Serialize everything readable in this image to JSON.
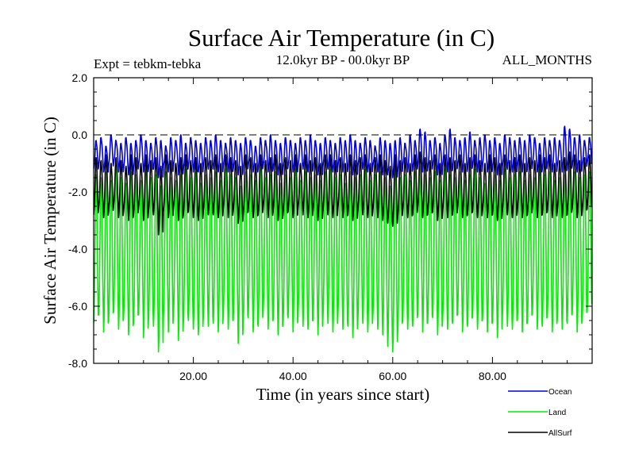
{
  "chart_data": {
    "type": "line",
    "title": "Surface Air Temperature (in C)",
    "subtitle_left": "Expt = tebkm-tebka",
    "subtitle_center": "12.0kyr BP - 00.0kyr BP",
    "subtitle_right": "ALL_MONTHS",
    "xlabel": "Time (in years since start)",
    "ylabel": "Surface Air Temperature (in C)",
    "xlim": [
      0,
      100
    ],
    "ylim": [
      -8,
      2
    ],
    "x_ticks": [
      20,
      40,
      60,
      80
    ],
    "x_tick_labels": [
      "20.00",
      "40.00",
      "60.00",
      "80.00"
    ],
    "y_ticks": [
      2,
      0,
      -2,
      -4,
      -6,
      -8
    ],
    "y_tick_labels": [
      "2.0",
      "0.0",
      "-2.0",
      "-4.0",
      "-6.0",
      "-8.0"
    ],
    "reference_line": 0,
    "legend_position": "bottom-right",
    "series": [
      {
        "name": "Land",
        "color": "#00ee00",
        "annual_cycle": true,
        "annual_max": [
          -1.4,
          -1.5,
          -1.3,
          -1.6,
          -1.2,
          -1.5,
          -1.7,
          -1.3,
          -1.4,
          -1.6,
          -1.2,
          -1.5,
          -1.4,
          -1.8,
          -1.3,
          -1.5,
          -1.6,
          -1.4,
          -1.2,
          -1.5,
          -1.3,
          -1.7,
          -1.4,
          -1.5,
          -1.3,
          -1.6,
          -1.2,
          -1.4,
          -1.5,
          -1.8,
          -1.3,
          -1.4,
          -1.6,
          -1.2,
          -1.5,
          -1.4,
          -1.3,
          -1.7,
          -1.4,
          -1.5,
          -1.2,
          -1.6,
          -1.3,
          -1.5,
          -1.4,
          -1.6,
          -1.3,
          -1.2,
          -1.5,
          -1.4,
          -1.7,
          -1.3,
          -1.5,
          -1.4,
          -1.2,
          -1.6,
          -1.4,
          -1.3,
          -1.5,
          -1.8,
          -1.2,
          -1.5,
          -1.4,
          -1.6,
          -1.3,
          -1.1,
          -1.4,
          -1.5,
          -1.3,
          -1.6,
          -1.2,
          -1.4,
          -1.5,
          -1.3,
          -1.6,
          -1.4,
          -1.2,
          -1.5,
          -1.7,
          -1.3,
          -1.4,
          -1.6,
          -1.2,
          -1.5,
          -1.4,
          -1.3,
          -1.6,
          -1.4,
          -1.5,
          -1.2,
          -1.4,
          -1.3,
          -1.6,
          -1.5,
          -1.4,
          -1.1,
          -1.3,
          -1.5,
          -1.4,
          -1.3
        ],
        "annual_min": [
          -6.6,
          -6.3,
          -6.9,
          -6.5,
          -6.2,
          -6.8,
          -6.4,
          -7.0,
          -6.6,
          -6.3,
          -7.1,
          -6.5,
          -6.7,
          -7.6,
          -6.4,
          -6.9,
          -6.3,
          -7.2,
          -6.6,
          -6.5,
          -6.8,
          -7.0,
          -6.4,
          -6.7,
          -6.6,
          -6.9,
          -6.3,
          -6.8,
          -6.5,
          -7.3,
          -6.6,
          -6.4,
          -6.9,
          -6.7,
          -6.2,
          -6.8,
          -6.5,
          -7.0,
          -6.6,
          -6.4,
          -6.9,
          -6.3,
          -6.7,
          -6.8,
          -6.5,
          -7.0,
          -6.4,
          -6.6,
          -6.9,
          -6.3,
          -6.8,
          -6.7,
          -7.1,
          -6.5,
          -6.6,
          -6.9,
          -6.4,
          -6.8,
          -7.0,
          -7.4,
          -7.6,
          -6.9,
          -6.5,
          -6.8,
          -6.7,
          -6.3,
          -6.9,
          -6.6,
          -6.4,
          -7.0,
          -6.5,
          -6.8,
          -6.6,
          -6.3,
          -6.9,
          -6.7,
          -6.4,
          -6.8,
          -6.5,
          -6.9,
          -6.6,
          -7.1,
          -6.4,
          -6.7,
          -6.8,
          -6.5,
          -6.9,
          -6.6,
          -6.3,
          -6.8,
          -6.7,
          -6.4,
          -6.9,
          -6.5,
          -6.8,
          -6.6,
          -6.3,
          -6.9,
          -6.5,
          -6.2
        ]
      },
      {
        "name": "AllSurf",
        "color": "#000000",
        "annual_cycle": true,
        "annual_max": [
          -0.8,
          -0.9,
          -0.7,
          -1.0,
          -0.8,
          -0.9,
          -1.1,
          -0.7,
          -0.8,
          -1.0,
          -0.7,
          -0.9,
          -0.8,
          -1.1,
          -0.7,
          -0.9,
          -1.0,
          -0.8,
          -0.7,
          -0.9,
          -0.8,
          -1.0,
          -0.8,
          -0.9,
          -0.7,
          -1.0,
          -0.7,
          -0.8,
          -0.9,
          -1.1,
          -0.7,
          -0.8,
          -1.0,
          -0.7,
          -0.9,
          -0.8,
          -0.7,
          -1.0,
          -0.8,
          -0.9,
          -0.7,
          -1.0,
          -0.7,
          -0.9,
          -0.8,
          -1.0,
          -0.7,
          -0.7,
          -0.9,
          -0.8,
          -1.0,
          -0.7,
          -0.9,
          -0.8,
          -0.7,
          -1.0,
          -0.8,
          -0.7,
          -0.9,
          -1.1,
          -0.7,
          -0.9,
          -0.8,
          -1.0,
          -0.7,
          -0.6,
          -0.8,
          -0.9,
          -0.7,
          -1.0,
          -0.7,
          -0.8,
          -0.9,
          -0.7,
          -1.0,
          -0.8,
          -0.7,
          -0.9,
          -1.0,
          -0.7,
          -0.8,
          -1.0,
          -0.7,
          -0.9,
          -0.8,
          -0.7,
          -1.0,
          -0.8,
          -0.9,
          -0.7,
          -0.8,
          -0.7,
          -1.0,
          -0.9,
          -0.8,
          -0.6,
          -0.7,
          -0.9,
          -0.8,
          -0.7
        ],
        "annual_min": [
          -2.8,
          -2.6,
          -2.9,
          -2.7,
          -2.5,
          -2.9,
          -2.7,
          -3.0,
          -2.8,
          -2.6,
          -3.0,
          -2.7,
          -2.8,
          -3.5,
          -2.7,
          -2.9,
          -2.6,
          -3.0,
          -2.8,
          -2.7,
          -2.9,
          -3.0,
          -2.7,
          -2.8,
          -2.8,
          -2.9,
          -2.6,
          -2.9,
          -2.7,
          -3.1,
          -2.8,
          -2.7,
          -2.9,
          -2.8,
          -2.6,
          -2.9,
          -2.7,
          -3.0,
          -2.8,
          -2.7,
          -2.9,
          -2.6,
          -2.8,
          -2.9,
          -2.7,
          -3.0,
          -2.7,
          -2.8,
          -2.9,
          -2.6,
          -2.9,
          -2.8,
          -3.0,
          -2.7,
          -2.8,
          -2.9,
          -2.7,
          -2.9,
          -3.0,
          -3.1,
          -3.2,
          -2.9,
          -2.7,
          -2.9,
          -2.8,
          -2.6,
          -2.9,
          -2.8,
          -2.7,
          -3.0,
          -2.7,
          -2.9,
          -2.8,
          -2.6,
          -2.9,
          -2.8,
          -2.7,
          -2.9,
          -2.7,
          -2.9,
          -2.8,
          -3.0,
          -2.7,
          -2.8,
          -2.9,
          -2.7,
          -2.9,
          -2.8,
          -2.6,
          -2.9,
          -2.8,
          -2.7,
          -2.9,
          -2.7,
          -2.9,
          -2.8,
          -2.6,
          -2.9,
          -2.7,
          -2.6
        ]
      },
      {
        "name": "Ocean",
        "color": "#0000dd",
        "annual_cycle": true,
        "annual_max": [
          -0.2,
          -0.1,
          -0.4,
          0.0,
          -0.2,
          -0.3,
          -0.1,
          -0.3,
          -0.2,
          0.0,
          -0.2,
          -0.3,
          -0.1,
          -0.2,
          -0.4,
          -0.1,
          -0.2,
          0.0,
          -0.3,
          -0.1,
          -0.2,
          -0.3,
          -0.1,
          -0.2,
          0.0,
          -0.2,
          -0.3,
          -0.1,
          -0.2,
          -0.3,
          -0.1,
          -0.2,
          -0.4,
          -0.1,
          -0.2,
          0.0,
          -0.2,
          -0.3,
          -0.1,
          -0.2,
          -0.3,
          -0.1,
          -0.2,
          0.0,
          -0.2,
          -0.3,
          -0.1,
          -0.2,
          -0.3,
          -0.1,
          -0.2,
          0.0,
          -0.2,
          -0.3,
          -0.1,
          -0.2,
          -0.4,
          -0.1,
          -0.2,
          -0.3,
          -0.2,
          -0.1,
          -0.3,
          0.0,
          -0.2,
          0.2,
          0.1,
          -0.2,
          -0.1,
          -0.3,
          0.0,
          0.2,
          -0.1,
          -0.2,
          -0.1,
          0.1,
          -0.2,
          -0.1,
          0.0,
          -0.2,
          -0.1,
          -0.3,
          0.0,
          -0.1,
          -0.2,
          -0.1,
          -0.2,
          0.0,
          -0.1,
          -0.3,
          -0.1,
          -0.2,
          -0.1,
          -0.2,
          0.3,
          0.2,
          -0.1,
          0.0,
          -0.2,
          -0.1
        ],
        "annual_min": [
          -1.2,
          -1.1,
          -1.3,
          -1.1,
          -1.0,
          -1.3,
          -1.2,
          -1.4,
          -1.2,
          -1.1,
          -1.3,
          -1.2,
          -1.2,
          -1.5,
          -1.1,
          -1.3,
          -1.1,
          -1.4,
          -1.2,
          -1.1,
          -1.3,
          -1.3,
          -1.1,
          -1.2,
          -1.2,
          -1.3,
          -1.1,
          -1.3,
          -1.2,
          -1.4,
          -1.2,
          -1.1,
          -1.3,
          -1.2,
          -1.1,
          -1.3,
          -1.2,
          -1.4,
          -1.2,
          -1.1,
          -1.3,
          -1.1,
          -1.2,
          -1.3,
          -1.2,
          -1.4,
          -1.1,
          -1.2,
          -1.3,
          -1.1,
          -1.3,
          -1.2,
          -1.4,
          -1.1,
          -1.2,
          -1.3,
          -1.1,
          -1.3,
          -1.4,
          -1.4,
          -1.5,
          -1.3,
          -1.1,
          -1.3,
          -1.2,
          -1.1,
          -1.3,
          -1.2,
          -1.1,
          -1.4,
          -1.1,
          -1.3,
          -1.2,
          -1.1,
          -1.3,
          -1.2,
          -1.1,
          -1.3,
          -1.1,
          -1.3,
          -1.2,
          -1.4,
          -1.1,
          -1.2,
          -1.3,
          -1.1,
          -1.3,
          -1.2,
          -1.1,
          -1.3,
          -1.2,
          -1.1,
          -1.3,
          -1.1,
          -1.3,
          -1.2,
          -1.1,
          -1.3,
          -1.1,
          -1.0
        ]
      }
    ],
    "legend_order": [
      "Ocean",
      "Land",
      "AllSurf"
    ]
  }
}
